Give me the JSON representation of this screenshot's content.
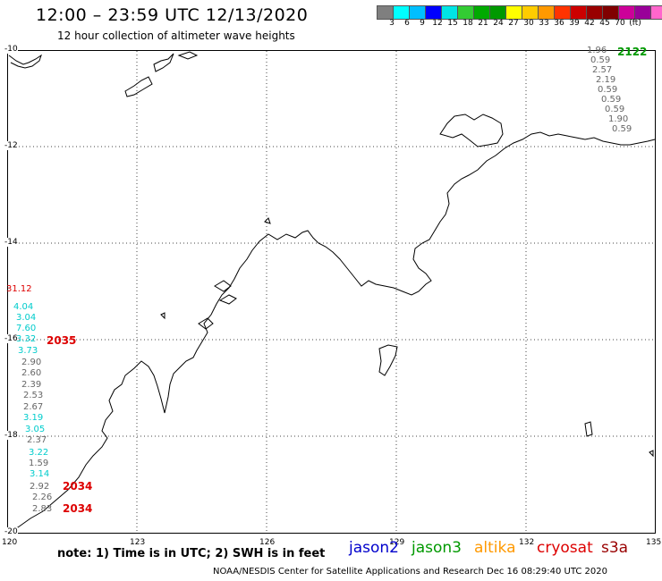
{
  "header": {
    "title": "12:00 – 23:59 UTC 12/13/2020",
    "subtitle": "12 hour collection of altimeter wave heights"
  },
  "scale": {
    "colors": [
      "#7f7f7f",
      "#00ffff",
      "#00bfff",
      "#0000ff",
      "#00e5e5",
      "#33cc33",
      "#00aa00",
      "#009900",
      "#ffff00",
      "#ffcc00",
      "#ff9900",
      "#ff3300",
      "#cc0000",
      "#990000",
      "#800000",
      "#cc0099",
      "#990099",
      "#ff66cc",
      "#000000"
    ],
    "labels": [
      "3",
      "6",
      "9",
      "12",
      "15",
      "18",
      "21",
      "24",
      "27",
      "30",
      "33",
      "36",
      "39",
      "42",
      "45",
      "70",
      "(ft)"
    ]
  },
  "axes": {
    "lon_labels": [
      "120",
      "123",
      "126",
      "129",
      "132",
      "135"
    ],
    "lat_labels": [
      "-10",
      "-12",
      "-14",
      "-16",
      "-18",
      "-20"
    ]
  },
  "tracks": {
    "west": {
      "time_labels": [
        "2035",
        "2034",
        "2034"
      ],
      "values": [
        {
          "v": "31.12",
          "color": "#dd0000"
        },
        {
          "v": "4.04",
          "color": "#00cccc"
        },
        {
          "v": "3.04",
          "color": "#00cccc"
        },
        {
          "v": "7.60",
          "color": "#00cccc"
        },
        {
          "v": "3.32",
          "color": "#00cccc"
        },
        {
          "v": "3.73",
          "color": "#00cccc"
        },
        {
          "v": "2.90",
          "color": "#666666"
        },
        {
          "v": "2.60",
          "color": "#666666"
        },
        {
          "v": "2.39",
          "color": "#666666"
        },
        {
          "v": "2.53",
          "color": "#666666"
        },
        {
          "v": "2.67",
          "color": "#666666"
        },
        {
          "v": "3.19",
          "color": "#00cccc"
        },
        {
          "v": "3.05",
          "color": "#00cccc"
        },
        {
          "v": "2.37",
          "color": "#666666"
        },
        {
          "v": "3.22",
          "color": "#00cccc"
        },
        {
          "v": "1.59",
          "color": "#666666"
        },
        {
          "v": "3.14",
          "color": "#00cccc"
        },
        {
          "v": "2.92",
          "color": "#666666"
        },
        {
          "v": "2.26",
          "color": "#666666"
        },
        {
          "v": "2.83",
          "color": "#666666"
        }
      ]
    },
    "east": {
      "time_label": "2122",
      "values": [
        "1.96",
        "0.59",
        "2.57",
        "2.19",
        "0.59",
        "0.59",
        "0.59",
        "1.90",
        "0.59"
      ]
    }
  },
  "footer": {
    "note": "note:  1) Time is in UTC;  2) SWH is in feet",
    "satellites": [
      {
        "name": "jason2",
        "color": "#0000cc"
      },
      {
        "name": "jason3",
        "color": "#009900"
      },
      {
        "name": "altika",
        "color": "#ff9900"
      },
      {
        "name": "cryosat",
        "color": "#dd0000"
      },
      {
        "name": "s3a",
        "color": "#990000"
      }
    ],
    "credit": "NOAA/NESDIS Center for Satellite Applications and Research     Dec 16 08:29:40 UTC 2020"
  }
}
